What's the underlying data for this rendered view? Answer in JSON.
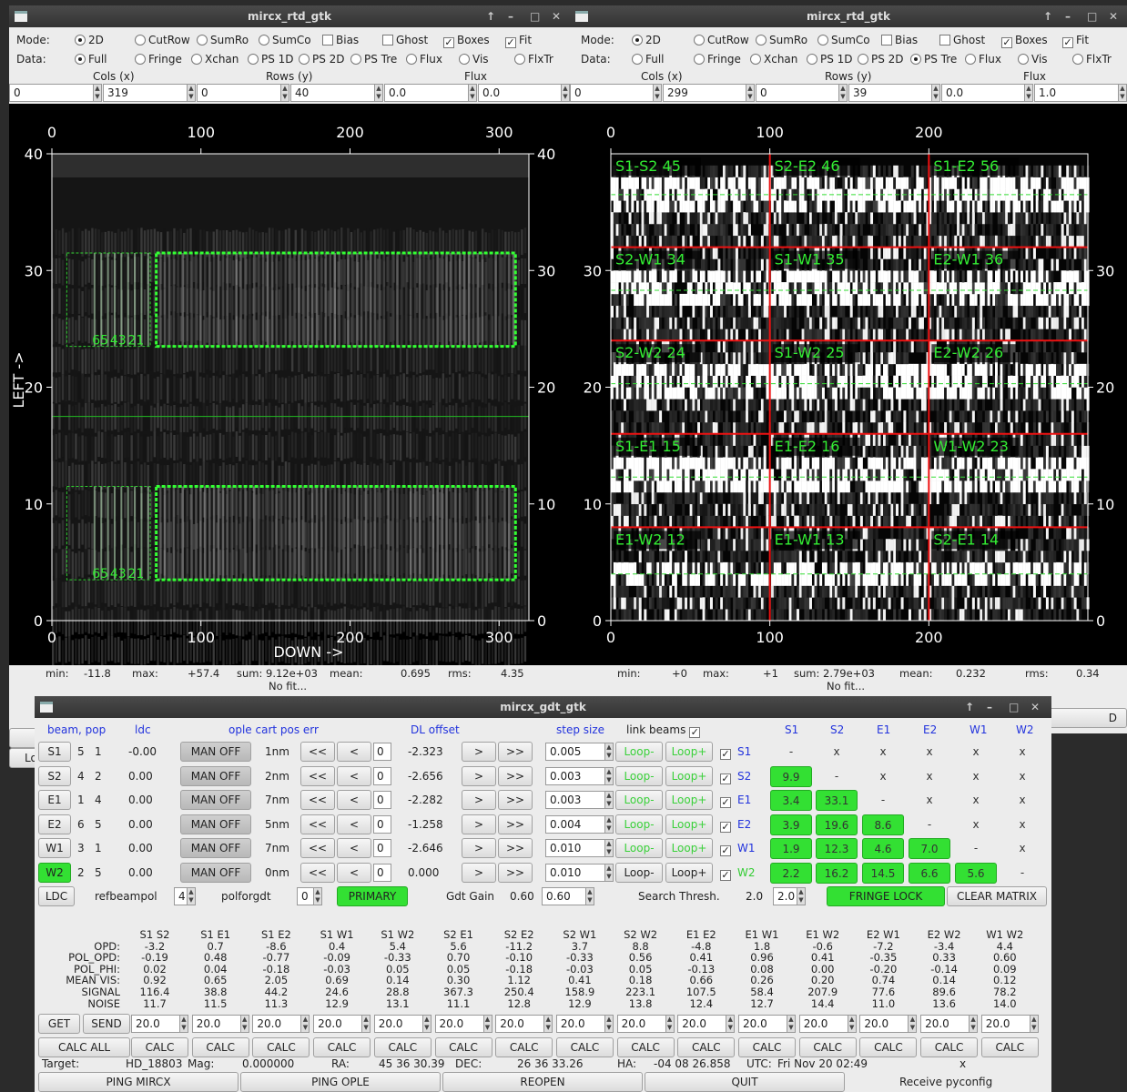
{
  "left_window": {
    "title": "mircx_rtd_gtk",
    "mode_label": "Mode:",
    "data_label": "Data:",
    "mode_opts": [
      "2D",
      "CutRow",
      "SumRo",
      "SumCo",
      "Bias",
      "Ghost",
      "Boxes",
      "Fit"
    ],
    "data_opts": [
      "Full",
      "Fringe",
      "Xchan",
      "PS 1D",
      "PS 2D",
      "PS Tre",
      "Flux",
      "Vis",
      "FlxTr"
    ],
    "cols_label": "Cols (x)",
    "rows_label": "Rows (y)",
    "flux_label": "Flux",
    "inputs": [
      "0",
      "319",
      "0",
      "40",
      "0.0",
      "0.0"
    ],
    "stats": {
      "min_l": "min:",
      "min": "-11.8",
      "max_l": "max:",
      "max": "+57.4",
      "sum_l": "sum:",
      "sum": "9.12e+03",
      "mean_l": "mean:",
      "mean": "0.695",
      "rms_l": "rms:",
      "rms": "4.35",
      "fit": "No fit..."
    },
    "xticks": [
      "0",
      "100",
      "200",
      "300"
    ],
    "yticks": [
      "0",
      "10",
      "20",
      "30",
      "40"
    ],
    "xlabel": "DOWN ->",
    "ylabel": "LEFT ->",
    "box_labels": [
      "65",
      "43",
      "21"
    ]
  },
  "right_window": {
    "title": "mircx_rtd_gtk",
    "mode_label": "Mode:",
    "data_label": "Data:",
    "mode_opts": [
      "2D",
      "CutRow",
      "SumRo",
      "SumCo",
      "Bias",
      "Ghost",
      "Boxes",
      "Fit"
    ],
    "data_opts": [
      "Full",
      "Fringe",
      "Xchan",
      "PS 1D",
      "PS 2D",
      "PS Tre",
      "Flux",
      "Vis",
      "FlxTr"
    ],
    "cols_label": "Cols (x)",
    "rows_label": "Rows (y)",
    "flux_label": "Flux",
    "inputs": [
      "0",
      "299",
      "0",
      "39",
      "0.0",
      "1.0"
    ],
    "stats": {
      "min_l": "min:",
      "min": "+0",
      "max_l": "max:",
      "max": "+1",
      "sum_l": "sum:",
      "sum": "2.79e+03",
      "mean_l": "mean:",
      "mean": "0.232",
      "rms_l": "rms:",
      "rms": "0.34",
      "fit": "No fit..."
    },
    "xticks": [
      "0",
      "100",
      "200"
    ],
    "yticks": [
      "0",
      "10",
      "20",
      "30"
    ],
    "cells": [
      "S1-S2  45",
      "S2-E2  46",
      "S1-E2  56",
      "S2-W1  34",
      "S1-W1  35",
      "E2-W1  36",
      "S2-W2  24",
      "S1-W2  25",
      "E2-W2  26",
      "S1-E1  15",
      "E1-E2  16",
      "W1-W2  23",
      "E1-W2  12",
      "E1-W1  13",
      "S2-E1  14"
    ]
  },
  "gdt": {
    "title": "mircx_gdt_gtk",
    "headers": {
      "beam": "beam, pop",
      "ldc": "ldc",
      "ople": "ople cart pos err",
      "dl": "DL offset",
      "step": "step size",
      "link": "link beams"
    },
    "matrix_cols": [
      "S1",
      "S2",
      "E1",
      "E2",
      "W1",
      "W2"
    ],
    "rows": [
      {
        "beam": "S1",
        "p1": "5",
        "p2": "1",
        "ldc": "-0.00",
        "man": "MAN OFF",
        "err": "1nm",
        "z": "0",
        "dl": "-2.323",
        "step": "0.005",
        "loopm": "Loop-",
        "loopp": "Loop+",
        "name": "S1"
      },
      {
        "beam": "S2",
        "p1": "4",
        "p2": "2",
        "ldc": "0.00",
        "man": "MAN OFF",
        "err": "2nm",
        "z": "0",
        "dl": "-2.656",
        "step": "0.003",
        "loopm": "Loop-",
        "loopp": "Loop+",
        "name": "S2"
      },
      {
        "beam": "E1",
        "p1": "1",
        "p2": "4",
        "ldc": "0.00",
        "man": "MAN OFF",
        "err": "7nm",
        "z": "0",
        "dl": "-2.282",
        "step": "0.003",
        "loopm": "Loop-",
        "loopp": "Loop+",
        "name": "E1"
      },
      {
        "beam": "E2",
        "p1": "6",
        "p2": "5",
        "ldc": "0.00",
        "man": "MAN OFF",
        "err": "5nm",
        "z": "0",
        "dl": "-1.258",
        "step": "0.004",
        "loopm": "Loop-",
        "loopp": "Loop+",
        "name": "E2"
      },
      {
        "beam": "W1",
        "p1": "3",
        "p2": "1",
        "ldc": "0.00",
        "man": "MAN OFF",
        "err": "7nm",
        "z": "0",
        "dl": "-2.646",
        "step": "0.010",
        "loopm": "Loop-",
        "loopp": "Loop+",
        "name": "W1"
      },
      {
        "beam": "W2",
        "p1": "2",
        "p2": "5",
        "ldc": "0.00",
        "man": "MAN OFF",
        "err": "0nm",
        "z": "0",
        "dl": "0.000",
        "step": "0.010",
        "loopm": "Loop-",
        "loopp": "Loop+",
        "name": "W2"
      }
    ],
    "matrix": [
      [
        "-",
        "x",
        "x",
        "x",
        "x",
        "x"
      ],
      [
        "9.9",
        "-",
        "x",
        "x",
        "x",
        "x"
      ],
      [
        "3.4",
        "33.1",
        "-",
        "x",
        "x",
        "x"
      ],
      [
        "3.9",
        "19.6",
        "8.6",
        "-",
        "x",
        "x"
      ],
      [
        "1.9",
        "12.3",
        "4.6",
        "7.0",
        "-",
        "x"
      ],
      [
        "2.2",
        "16.2",
        "14.5",
        "6.6",
        "5.6",
        "-"
      ]
    ],
    "ctrl": {
      "ldc": "LDC",
      "refbeampol": "refbeampol",
      "refval": "4",
      "polforgdt": "polforgdt",
      "polval": "0",
      "primary": "PRIMARY",
      "gain_label": "Gdt Gain",
      "gain": "0.60",
      "gain_in": "0.60",
      "search_label": "Search Thresh.",
      "search": "2.0",
      "search_in": "2.0",
      "fringe": "FRINGE LOCK",
      "clear": "CLEAR MATRIX"
    },
    "table": {
      "row_labels": [
        "OPD:",
        "POL_OPD:",
        "POL_PHI:",
        "MEAN VIS:",
        "SIGNAL",
        "NOISE"
      ],
      "cols": [
        {
          "h": "S1 S2",
          "v": [
            "-3.2",
            "-0.19",
            "0.02",
            "0.92",
            "116.4",
            "11.7"
          ]
        },
        {
          "h": "S1 E1",
          "v": [
            "0.7",
            "0.48",
            "0.04",
            "0.65",
            "38.8",
            "11.5"
          ]
        },
        {
          "h": "S1 E2",
          "v": [
            "-8.6",
            "-0.77",
            "-0.18",
            "2.05",
            "44.2",
            "11.3"
          ]
        },
        {
          "h": "S1 W1",
          "v": [
            "0.4",
            "-0.09",
            "-0.03",
            "0.69",
            "24.6",
            "12.9"
          ]
        },
        {
          "h": "S1 W2",
          "v": [
            "5.4",
            "-0.33",
            "0.05",
            "0.14",
            "28.8",
            "13.1"
          ]
        },
        {
          "h": "S2 E1",
          "v": [
            "5.6",
            "0.70",
            "0.05",
            "0.30",
            "367.3",
            "11.1"
          ]
        },
        {
          "h": "S2 E2",
          "v": [
            "-11.2",
            "-0.10",
            "-0.18",
            "1.12",
            "250.4",
            "12.8"
          ]
        },
        {
          "h": "S2 W1",
          "v": [
            "3.7",
            "-0.33",
            "-0.03",
            "0.41",
            "158.9",
            "12.9"
          ]
        },
        {
          "h": "S2 W2",
          "v": [
            "8.8",
            "0.56",
            "0.05",
            "0.18",
            "223.1",
            "13.8"
          ]
        },
        {
          "h": "E1 E2",
          "v": [
            "-4.8",
            "0.41",
            "-0.13",
            "0.66",
            "107.5",
            "12.4"
          ]
        },
        {
          "h": "E1 W1",
          "v": [
            "1.8",
            "0.96",
            "0.08",
            "0.26",
            "58.4",
            "12.7"
          ]
        },
        {
          "h": "E1 W2",
          "v": [
            "-0.6",
            "0.41",
            "0.00",
            "0.20",
            "207.9",
            "14.4"
          ]
        },
        {
          "h": "E2 W1",
          "v": [
            "-7.2",
            "-0.35",
            "-0.20",
            "0.74",
            "77.6",
            "11.0"
          ]
        },
        {
          "h": "E2 W2",
          "v": [
            "-3.4",
            "0.33",
            "-0.14",
            "0.14",
            "89.6",
            "13.6"
          ]
        },
        {
          "h": "W1 W2",
          "v": [
            "4.4",
            "0.60",
            "0.09",
            "0.12",
            "78.2",
            "14.0"
          ]
        }
      ]
    },
    "get": "GET",
    "send": "SEND",
    "noise_val": "20.0",
    "calc_all": "CALC ALL",
    "calc": "CALC",
    "status": {
      "target_l": "Target:",
      "target": "HD_18803",
      "mag_l": "Mag:",
      "mag": "0.000000",
      "ra_l": "RA:",
      "ra": "45 36 30.39",
      "dec_l": "DEC:",
      "dec": "26 36 33.26",
      "ha_l": "HA:",
      "ha": "-04 08 26.858",
      "utc_l": "UTC:",
      "utc": "Fri Nov 20 02:49",
      "x": "x"
    },
    "bottom": [
      "PING MIRCX",
      "PING OPLE",
      "REOPEN",
      "QUIT",
      "Receive pyconfig"
    ]
  },
  "behind_fragments": {
    "lo": "Lo",
    "d": "D"
  }
}
